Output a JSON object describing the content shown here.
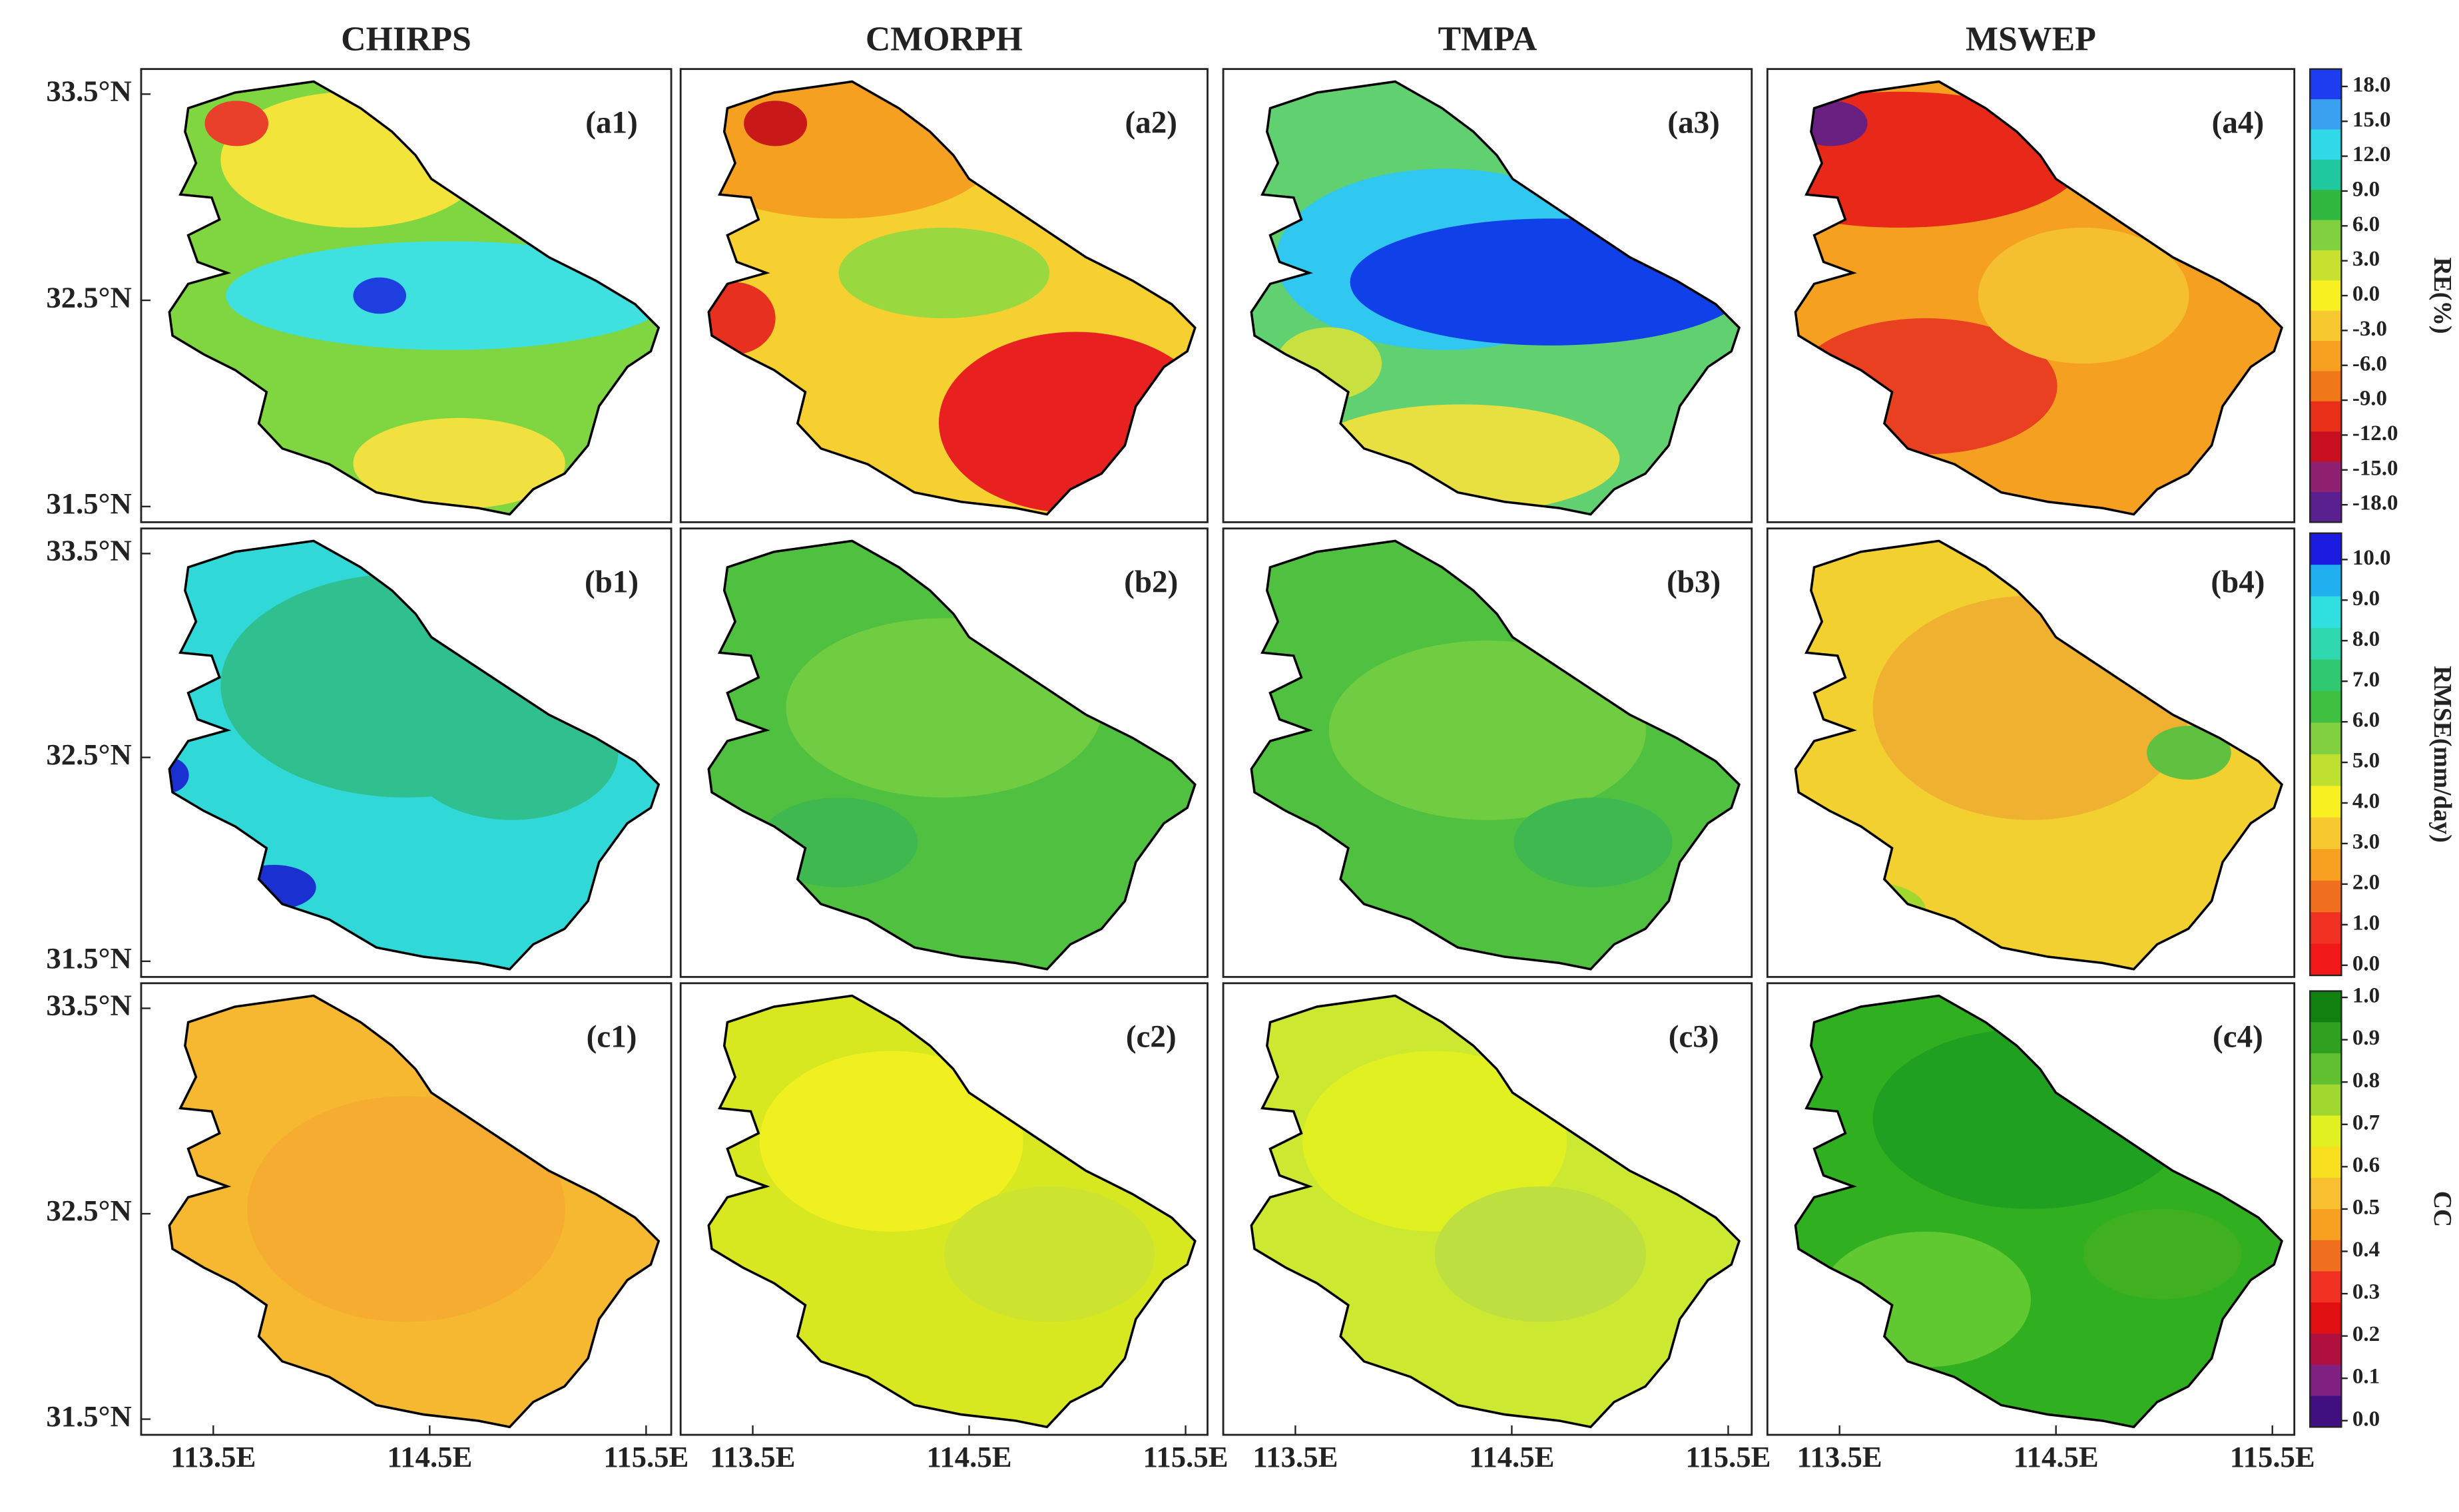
{
  "chart_data": {
    "type": "map",
    "columns": [
      "CHIRPS",
      "CMORPH",
      "TMPA",
      "MSWEP"
    ],
    "panels": [
      [
        "(a1)",
        "(a2)",
        "(a3)",
        "(a4)"
      ],
      [
        "(b1)",
        "(b2)",
        "(b3)",
        "(b4)"
      ],
      [
        "(c1)",
        "(c2)",
        "(c3)",
        "(c4)"
      ]
    ],
    "ylim": [
      31.5,
      33.5
    ],
    "yticks": [
      {
        "value": 33.5,
        "label": "33.5°N"
      },
      {
        "value": 32.5,
        "label": "32.5°N"
      },
      {
        "value": 31.5,
        "label": "31.5°N"
      }
    ],
    "xticks": [
      {
        "value": 113.5,
        "label": "113.5E"
      },
      {
        "value": 114.5,
        "label": "114.5E"
      },
      {
        "value": 115.5,
        "label": "115.5E"
      }
    ],
    "colorbars": [
      {
        "label": "RE(%)",
        "lim": [
          -19.5,
          19.5
        ],
        "ticks": [
          {
            "value": 18,
            "label": "18.0"
          },
          {
            "value": 15,
            "label": "15.0"
          },
          {
            "value": 12,
            "label": "12.0"
          },
          {
            "value": 9,
            "label": "9.0"
          },
          {
            "value": 6,
            "label": "6.0"
          },
          {
            "value": 3,
            "label": "3.0"
          },
          {
            "value": 0,
            "label": "0.0"
          },
          {
            "value": -3,
            "label": "-3.0"
          },
          {
            "value": -6,
            "label": "-6.0"
          },
          {
            "value": -9,
            "label": "-9.0"
          },
          {
            "value": -12,
            "label": "-12.0"
          },
          {
            "value": -15,
            "label": "-15.0"
          },
          {
            "value": -18,
            "label": "-18.0"
          }
        ],
        "colors": [
          "#1e3cf0",
          "#3aa0f0",
          "#30d8e8",
          "#20c8a0",
          "#30b840",
          "#80d040",
          "#c8e030",
          "#f8f020",
          "#f8c830",
          "#f8a020",
          "#f07818",
          "#e83018",
          "#c81020",
          "#902070",
          "#5a2090"
        ]
      },
      {
        "label": "RMSE(mm/day)",
        "lim": [
          -0.25,
          10.65
        ],
        "ticks": [
          {
            "value": 10,
            "label": "10.0"
          },
          {
            "value": 9,
            "label": "9.0"
          },
          {
            "value": 8,
            "label": "8.0"
          },
          {
            "value": 7,
            "label": "7.0"
          },
          {
            "value": 6,
            "label": "6.0"
          },
          {
            "value": 5,
            "label": "5.0"
          },
          {
            "value": 4,
            "label": "4.0"
          },
          {
            "value": 3,
            "label": "3.0"
          },
          {
            "value": 2,
            "label": "2.0"
          },
          {
            "value": 1,
            "label": "1.0"
          },
          {
            "value": 0,
            "label": "0.0"
          }
        ],
        "colors": [
          "#1a1ae0",
          "#20b0f0",
          "#30e0e0",
          "#30d8b0",
          "#30c870",
          "#40c040",
          "#80d040",
          "#c0e030",
          "#f8f020",
          "#f8c830",
          "#f8a020",
          "#f07020",
          "#f03020",
          "#f01818"
        ]
      },
      {
        "label": "CC",
        "lim": [
          -0.015,
          1.015
        ],
        "ticks": [
          {
            "value": 1,
            "label": "1.0"
          },
          {
            "value": 0.9,
            "label": "0.9"
          },
          {
            "value": 0.8,
            "label": "0.8"
          },
          {
            "value": 0.7,
            "label": "0.7"
          },
          {
            "value": 0.6,
            "label": "0.6"
          },
          {
            "value": 0.5,
            "label": "0.5"
          },
          {
            "value": 0.4,
            "label": "0.4"
          },
          {
            "value": 0.3,
            "label": "0.3"
          },
          {
            "value": 0.2,
            "label": "0.2"
          },
          {
            "value": 0.1,
            "label": "0.1"
          },
          {
            "value": 0,
            "label": "0.0"
          }
        ],
        "colors": [
          "#108010",
          "#30a020",
          "#60c030",
          "#a0d830",
          "#e0f020",
          "#f8e020",
          "#f8c030",
          "#f8a020",
          "#f07020",
          "#f03020",
          "#e01010",
          "#b01040",
          "#802080",
          "#401080"
        ]
      }
    ]
  }
}
